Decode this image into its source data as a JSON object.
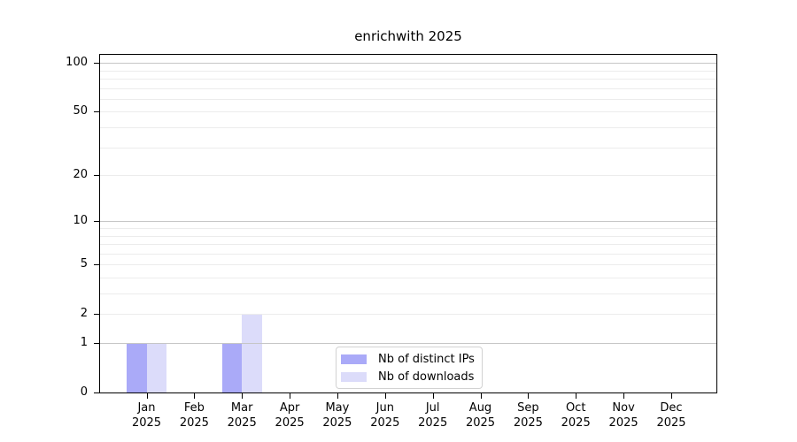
{
  "chart_data": {
    "type": "bar",
    "title": "enrichwith 2025",
    "categories": [
      "Jan",
      "Feb",
      "Mar",
      "Apr",
      "May",
      "Jun",
      "Jul",
      "Aug",
      "Sep",
      "Oct",
      "Nov",
      "Dec"
    ],
    "x_year_label": "2025",
    "series": [
      {
        "name": "Nb of distinct IPs",
        "color": "#aaaaf8",
        "values": [
          1,
          0,
          1,
          0,
          0,
          0,
          0,
          0,
          0,
          0,
          0,
          0
        ]
      },
      {
        "name": "Nb of downloads",
        "color": "#dcdcfa",
        "values": [
          1,
          0,
          2,
          0,
          0,
          0,
          0,
          0,
          0,
          0,
          0,
          0
        ]
      }
    ],
    "xlabel": "",
    "ylabel": "",
    "y_scale": "log10(1+x)",
    "ylim": [
      0,
      112
    ],
    "y_ticks": [
      100,
      50,
      20,
      10,
      5,
      2,
      1,
      0
    ],
    "major_gridline_values": [
      1,
      10,
      100
    ],
    "minor_gridline_values": [
      2,
      3,
      4,
      5,
      6,
      7,
      8,
      9,
      20,
      30,
      40,
      50,
      60,
      70,
      80,
      90
    ],
    "grid_major_color": "#c6c6c6",
    "grid_minor_color": "#ececec",
    "axis_color": "#000000",
    "legend_position": "bottom-center",
    "legend": [
      "Nb of distinct IPs",
      "Nb of downloads"
    ]
  }
}
